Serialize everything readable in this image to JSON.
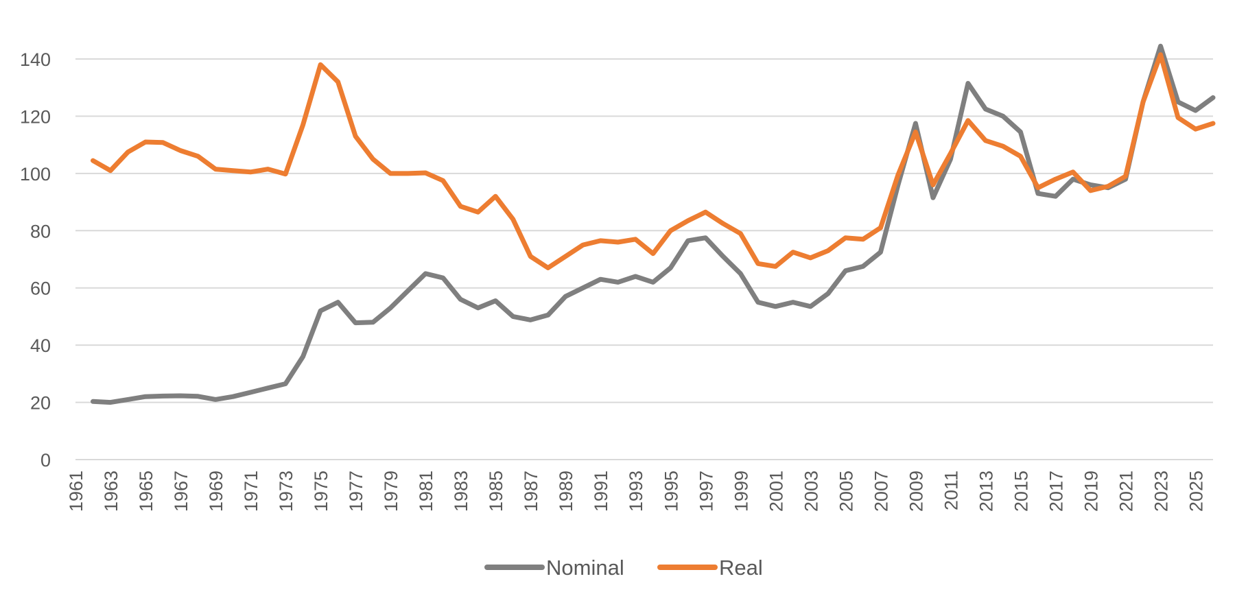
{
  "chart_data": {
    "type": "line",
    "title": "",
    "xlabel": "",
    "ylabel": "",
    "ylim": [
      0,
      140
    ],
    "yticks": [
      0,
      20,
      40,
      60,
      80,
      100,
      120,
      140
    ],
    "xlim": [
      1961,
      2026
    ],
    "xticks": [
      1961,
      1963,
      1965,
      1967,
      1969,
      1971,
      1973,
      1975,
      1977,
      1979,
      1981,
      1983,
      1985,
      1987,
      1989,
      1991,
      1993,
      1995,
      1997,
      1999,
      2001,
      2003,
      2005,
      2007,
      2009,
      2011,
      2013,
      2015,
      2017,
      2019,
      2021,
      2023,
      2025
    ],
    "grid": true,
    "legend_position": "bottom",
    "x": [
      1962,
      1963,
      1964,
      1965,
      1966,
      1967,
      1968,
      1969,
      1970,
      1971,
      1972,
      1973,
      1974,
      1975,
      1976,
      1977,
      1978,
      1979,
      1980,
      1981,
      1982,
      1983,
      1984,
      1985,
      1986,
      1987,
      1988,
      1989,
      1990,
      1991,
      1992,
      1993,
      1994,
      1995,
      1996,
      1997,
      1998,
      1999,
      2000,
      2001,
      2002,
      2003,
      2004,
      2005,
      2006,
      2007,
      2008,
      2009,
      2010,
      2011,
      2012,
      2013,
      2014,
      2015,
      2016,
      2017,
      2018,
      2019,
      2020,
      2021,
      2022,
      2023,
      2024,
      2025,
      2026
    ],
    "series": [
      {
        "name": "Nominal",
        "color": "#7f7f7f",
        "values": [
          20.3,
          20.0,
          21.0,
          22.0,
          22.2,
          22.3,
          22.1,
          21.0,
          22.0,
          23.5,
          25.0,
          26.5,
          36.0,
          52.0,
          55.0,
          47.8,
          48.0,
          53.0,
          59.0,
          65.0,
          63.5,
          56.0,
          53.0,
          55.5,
          50.0,
          48.8,
          50.5,
          57.0,
          60.0,
          63.0,
          62.0,
          64.0,
          62.0,
          67.0,
          76.5,
          77.5,
          71.0,
          65.0,
          55.0,
          53.5,
          55.0,
          53.5,
          58.0,
          66.0,
          67.5,
          72.5,
          96.0,
          117.5,
          91.5,
          105.0,
          131.5,
          122.5,
          120.0,
          114.5,
          93.0,
          92.0,
          98.0,
          96.0,
          95.0,
          98.0,
          125.0,
          144.5,
          125.0,
          122.0,
          126.5
        ]
      },
      {
        "name": "Real",
        "color": "#ed7d31",
        "values": [
          104.5,
          101.0,
          107.5,
          111.0,
          110.8,
          108.0,
          106.0,
          101.5,
          101.0,
          100.5,
          101.5,
          99.8,
          117.0,
          138.0,
          132.0,
          113.0,
          105.0,
          100.0,
          100.0,
          100.2,
          97.5,
          88.5,
          86.5,
          92.0,
          84.0,
          71.0,
          67.0,
          71.0,
          75.0,
          76.5,
          76.0,
          77.0,
          72.0,
          80.0,
          83.5,
          86.5,
          82.5,
          79.0,
          68.5,
          67.5,
          72.5,
          70.5,
          73.0,
          77.5,
          77.0,
          81.0,
          99.5,
          114.5,
          96.0,
          107.0,
          118.5,
          111.5,
          109.5,
          106.0,
          95.0,
          98.0,
          100.5,
          94.0,
          95.5,
          99.0,
          125.0,
          141.5,
          119.5,
          115.5,
          117.5
        ]
      }
    ]
  }
}
